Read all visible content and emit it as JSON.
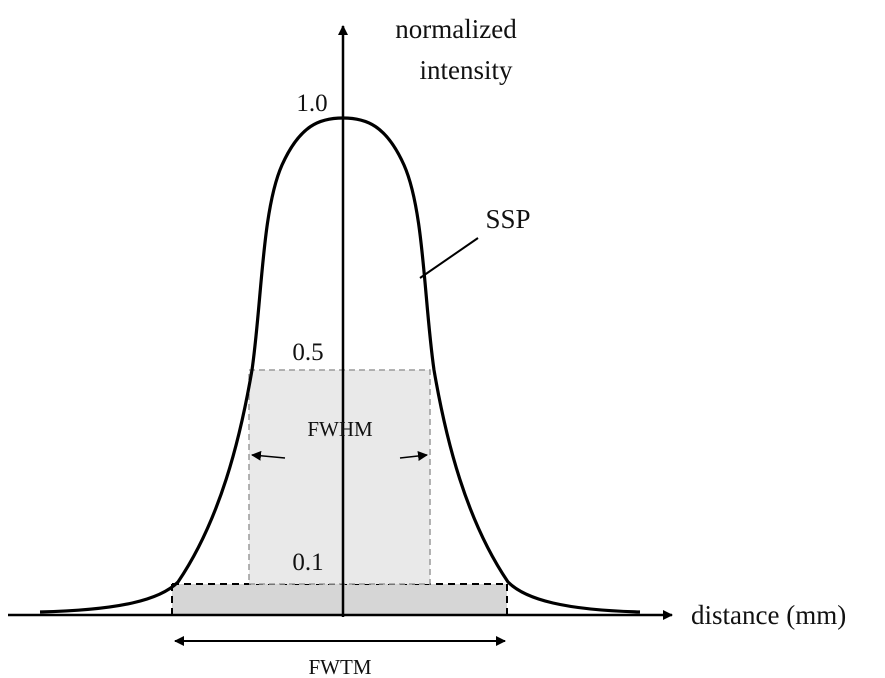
{
  "labels": {
    "y_axis_line1": "normalized",
    "y_axis_line2": "intensity",
    "x_axis": "distance (mm)",
    "tick_1_0": "1.0",
    "tick_0_5": "0.5",
    "tick_0_1": "0.1",
    "curve": "SSP",
    "fwhm": "FWHM",
    "fwtm": "FWTM"
  },
  "colors": {
    "line": "#000000",
    "fwhm_fill": "#e9e9e9",
    "fwtm_fill": "#d6d6d6",
    "dashed_gray": "#9a9a9a"
  }
}
